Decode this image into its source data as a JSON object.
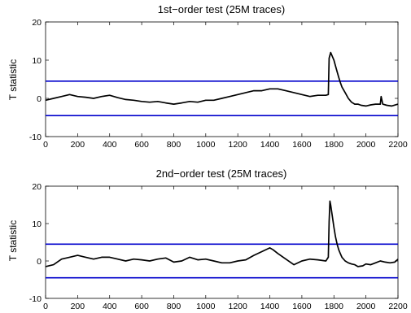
{
  "chart_data": [
    {
      "type": "line",
      "title": "1st−order test (25M traces)",
      "xlabel": "",
      "ylabel": "T statistic",
      "xlim": [
        0,
        2200
      ],
      "ylim": [
        -10,
        20
      ],
      "xticks": [
        0,
        200,
        400,
        600,
        800,
        1000,
        1200,
        1400,
        1600,
        1800,
        2000,
        2200
      ],
      "yticks": [
        -10,
        0,
        10,
        20
      ],
      "thresholds": [
        4.5,
        -4.5
      ],
      "threshold_color": "#0000cc",
      "grid": false,
      "series": [
        {
          "color": "#000000",
          "x": [
            0,
            50,
            100,
            150,
            200,
            250,
            300,
            350,
            400,
            450,
            500,
            550,
            600,
            650,
            700,
            750,
            800,
            850,
            900,
            950,
            1000,
            1050,
            1100,
            1150,
            1200,
            1250,
            1300,
            1350,
            1400,
            1450,
            1500,
            1550,
            1600,
            1650,
            1700,
            1750,
            1765,
            1770,
            1780,
            1790,
            1800,
            1810,
            1820,
            1830,
            1840,
            1850,
            1870,
            1890,
            1910,
            1930,
            1950,
            1970,
            2000,
            2030,
            2060,
            2090,
            2095,
            2100,
            2105,
            2130,
            2160,
            2200
          ],
          "y": [
            -0.5,
            0,
            0.5,
            1,
            0.5,
            0.3,
            0,
            0.5,
            0.8,
            0.2,
            -0.3,
            -0.5,
            -0.8,
            -1,
            -0.8,
            -1.2,
            -1.5,
            -1.2,
            -0.8,
            -1,
            -0.5,
            -0.5,
            0,
            0.5,
            1,
            1.5,
            2,
            2,
            2.5,
            2.5,
            2,
            1.5,
            1,
            0.5,
            0.8,
            0.8,
            1,
            10.5,
            12,
            11,
            10,
            8.5,
            7,
            5.5,
            4.2,
            3,
            1.5,
            0,
            -1,
            -1.5,
            -1.5,
            -1.8,
            -2,
            -1.7,
            -1.5,
            -1.5,
            0.5,
            -0.5,
            -1.5,
            -1.8,
            -2,
            -1.5
          ]
        }
      ]
    },
    {
      "type": "line",
      "title": "2nd−order test (25M traces)",
      "xlabel": "",
      "ylabel": "T statistic",
      "xlim": [
        0,
        2200
      ],
      "ylim": [
        -10,
        20
      ],
      "xticks": [
        0,
        200,
        400,
        600,
        800,
        1000,
        1200,
        1400,
        1600,
        1800,
        2000,
        2200
      ],
      "yticks": [
        -10,
        0,
        10,
        20
      ],
      "thresholds": [
        4.5,
        -4.5
      ],
      "threshold_color": "#0000cc",
      "grid": false,
      "series": [
        {
          "color": "#000000",
          "x": [
            0,
            50,
            100,
            150,
            200,
            250,
            300,
            350,
            400,
            450,
            500,
            550,
            600,
            650,
            700,
            750,
            800,
            850,
            900,
            950,
            1000,
            1050,
            1100,
            1150,
            1200,
            1250,
            1300,
            1350,
            1400,
            1420,
            1450,
            1500,
            1550,
            1600,
            1650,
            1700,
            1750,
            1765,
            1770,
            1775,
            1780,
            1790,
            1800,
            1810,
            1820,
            1830,
            1840,
            1850,
            1870,
            1890,
            1910,
            1930,
            1950,
            1980,
            2000,
            2030,
            2060,
            2090,
            2120,
            2150,
            2180,
            2200
          ],
          "y": [
            -1.5,
            -1,
            0.5,
            1,
            1.5,
            1,
            0.5,
            1,
            1,
            0.5,
            0,
            0.5,
            0.3,
            0,
            0.5,
            0.8,
            -0.3,
            0,
            1,
            0.3,
            0.5,
            0,
            -0.5,
            -0.5,
            0,
            0.3,
            1.5,
            2.5,
            3.5,
            3,
            2,
            0.5,
            -1,
            0,
            0.5,
            0.3,
            0,
            1,
            10.5,
            16,
            15,
            12,
            9,
            6.5,
            4.5,
            3,
            2,
            1,
            0,
            -0.5,
            -0.8,
            -1,
            -1.5,
            -1.3,
            -0.8,
            -1,
            -0.5,
            0,
            -0.3,
            -0.5,
            -0.3,
            0.5
          ]
        }
      ]
    }
  ]
}
